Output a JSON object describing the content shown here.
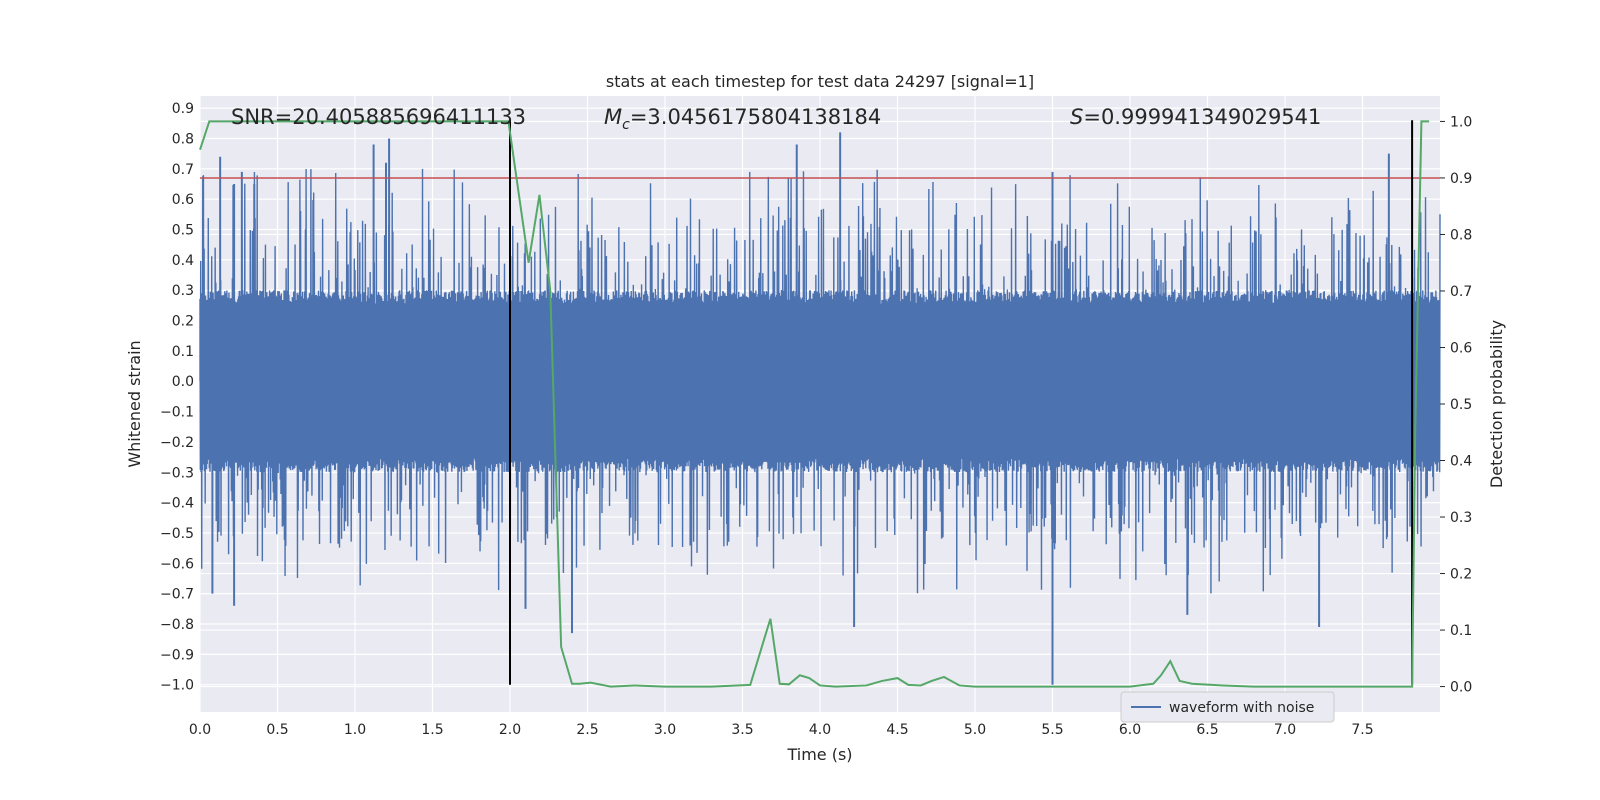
{
  "chart_data": {
    "type": "line",
    "title": "stats at each timestep for test data 24297 [signal=1]",
    "xlabel": "Time (s)",
    "ylabel": "Whitened strain",
    "y2label": "Detection probability",
    "xlim": [
      0.0,
      8.0
    ],
    "ylim": [
      -1.09,
      0.94
    ],
    "y2lim": [
      -0.045,
      1.045
    ],
    "xticks": [
      0.0,
      0.5,
      1.0,
      1.5,
      2.0,
      2.5,
      3.0,
      3.5,
      4.0,
      4.5,
      5.0,
      5.5,
      6.0,
      6.5,
      7.0,
      7.5
    ],
    "xtick_labels": [
      "0.0",
      "0.5",
      "1.0",
      "1.5",
      "2.0",
      "2.5",
      "3.0",
      "3.5",
      "4.0",
      "4.5",
      "5.0",
      "5.5",
      "6.0",
      "6.5",
      "7.0",
      "7.5"
    ],
    "yticks": [
      -1.0,
      -0.9,
      -0.8,
      -0.7,
      -0.6,
      -0.5,
      -0.4,
      -0.3,
      -0.2,
      -0.1,
      0.0,
      0.1,
      0.2,
      0.3,
      0.4,
      0.5,
      0.6,
      0.7,
      0.8,
      0.9
    ],
    "ytick_labels": [
      "−1.0",
      "−0.9",
      "−0.8",
      "−0.7",
      "−0.6",
      "−0.5",
      "−0.4",
      "−0.3",
      "−0.2",
      "−0.1",
      "0.0",
      "0.1",
      "0.2",
      "0.3",
      "0.4",
      "0.5",
      "0.6",
      "0.7",
      "0.8",
      "0.9"
    ],
    "y2ticks": [
      0.0,
      0.1,
      0.2,
      0.3,
      0.4,
      0.5,
      0.6,
      0.7,
      0.8,
      0.9,
      1.0
    ],
    "y2tick_labels": [
      "0.0",
      "0.1",
      "0.2",
      "0.3",
      "0.4",
      "0.5",
      "0.6",
      "0.7",
      "0.8",
      "0.9",
      "1.0"
    ],
    "grid": true,
    "annotations": {
      "snr": "SNR=20.405885696411133",
      "mc_symbol": "M",
      "mc_subscript": "c",
      "mc_value": "=3.0456175804138184",
      "s_symbol": "S",
      "s_value": "=0.999941349029541"
    },
    "legend": {
      "position": "lower-right",
      "entries": [
        "waveform with noise"
      ]
    },
    "threshold_line": {
      "y": 0.9,
      "axis": "right",
      "color": "#c44e52"
    },
    "vertical_markers": [
      {
        "x": 2.0,
        "ymin": -1.0,
        "ymax": 0.86,
        "color": "#000000"
      },
      {
        "x": 7.82,
        "ymin": -1.0,
        "ymax": 0.86,
        "color": "#000000"
      }
    ],
    "series": [
      {
        "name": "waveform with noise",
        "axis": "left",
        "color": "#4c72b0",
        "summary": {
          "x_range": [
            0.0,
            8.0
          ],
          "core_amplitude": 0.3,
          "outer_amplitude": 0.55
        },
        "spikes": [
          {
            "x": 0.13,
            "y": 0.74
          },
          {
            "x": 0.22,
            "y": 0.65
          },
          {
            "x": 0.27,
            "y": 0.69
          },
          {
            "x": 0.35,
            "y": 0.65
          },
          {
            "x": 1.12,
            "y": 0.78
          },
          {
            "x": 1.2,
            "y": 0.72
          },
          {
            "x": 1.22,
            "y": 0.8
          },
          {
            "x": 3.85,
            "y": 0.78
          },
          {
            "x": 4.13,
            "y": 0.82
          },
          {
            "x": 5.5,
            "y": 0.69
          },
          {
            "x": 7.67,
            "y": 0.75
          },
          {
            "x": 0.08,
            "y": -0.7
          },
          {
            "x": 0.22,
            "y": -0.74
          },
          {
            "x": 2.1,
            "y": -0.75
          },
          {
            "x": 2.4,
            "y": -0.83
          },
          {
            "x": 4.22,
            "y": -0.81
          },
          {
            "x": 5.5,
            "y": -1.0
          },
          {
            "x": 6.37,
            "y": -0.77
          },
          {
            "x": 7.22,
            "y": -0.81
          }
        ]
      },
      {
        "name": "",
        "axis": "right",
        "color": "#55a868",
        "x": [
          0.0,
          0.06,
          1.99,
          2.12,
          2.19,
          2.26,
          2.33,
          2.4,
          2.45,
          2.52,
          2.65,
          2.8,
          3.0,
          3.3,
          3.55,
          3.68,
          3.74,
          3.8,
          3.87,
          3.93,
          4.0,
          4.1,
          4.3,
          4.4,
          4.5,
          4.57,
          4.65,
          4.72,
          4.8,
          4.9,
          5.0,
          5.3,
          5.5,
          5.7,
          6.0,
          6.15,
          6.2,
          6.26,
          6.32,
          6.4,
          6.6,
          6.8,
          7.0,
          7.3,
          7.6,
          7.8,
          7.82,
          7.84,
          7.88,
          7.93
        ],
        "y": [
          0.95,
          1.0,
          1.0,
          0.75,
          0.87,
          0.7,
          0.07,
          0.005,
          0.005,
          0.007,
          0.0,
          0.002,
          0.0,
          0.0,
          0.003,
          0.12,
          0.005,
          0.004,
          0.02,
          0.015,
          0.002,
          0.0,
          0.002,
          0.01,
          0.015,
          0.003,
          0.002,
          0.01,
          0.017,
          0.002,
          0.0,
          0.0,
          0.0,
          0.0,
          0.0,
          0.005,
          0.02,
          0.045,
          0.01,
          0.005,
          0.002,
          0.0,
          0.0,
          0.0,
          0.0,
          0.0,
          0.0,
          0.45,
          1.0,
          1.0
        ]
      }
    ]
  }
}
